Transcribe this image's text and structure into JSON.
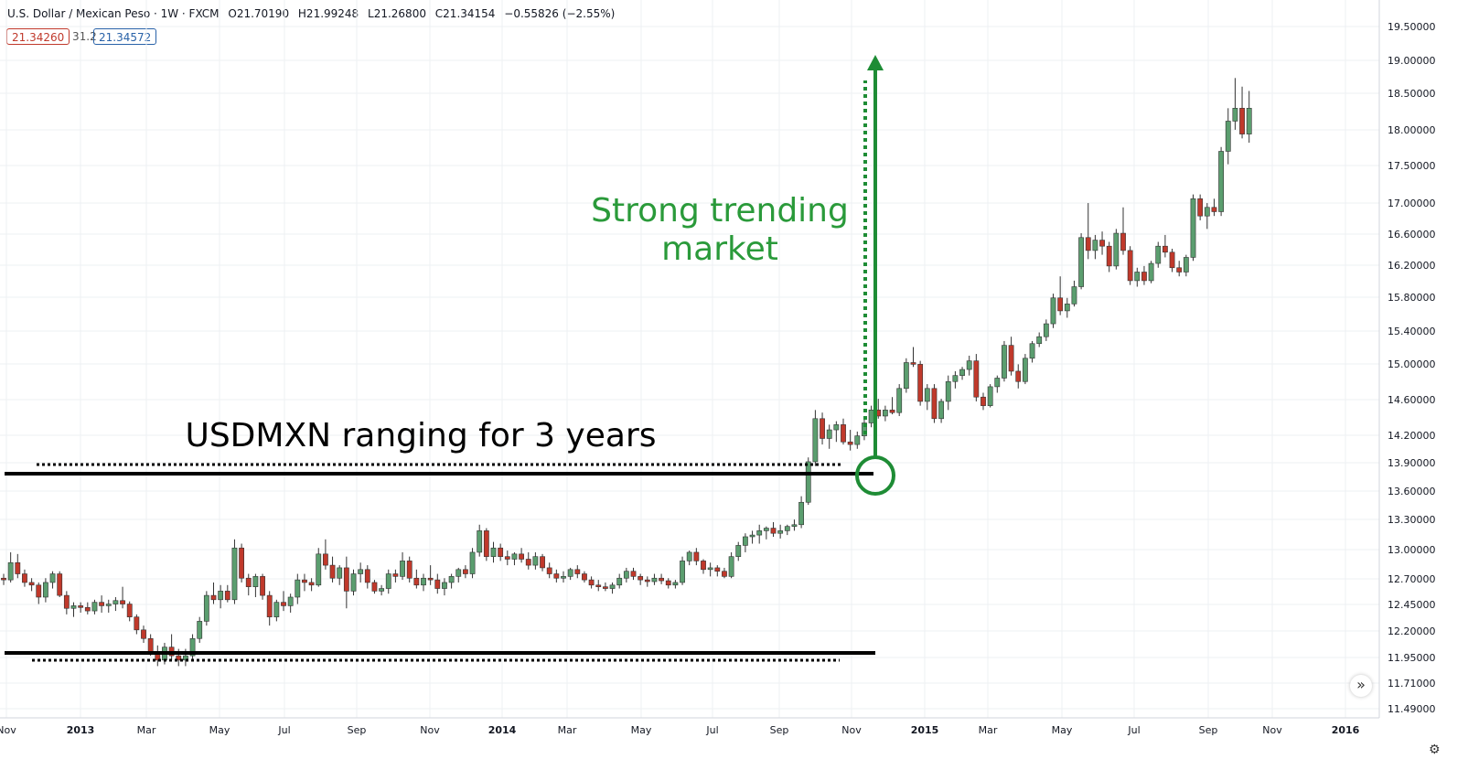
{
  "header": {
    "symbol": "U.S. Dollar / Mexican Peso · 1W · FXCM",
    "open": "O21.70190",
    "high": "H21.99248",
    "low": "L21.26800",
    "close": "C21.34154",
    "change": "−0.55826 (−2.55%)"
  },
  "quote": {
    "bid": "21.34260",
    "spread": "31.2",
    "ask": "21.34572"
  },
  "colors": {
    "up": "#5b9e6f",
    "down": "#c0392b",
    "annotation": "#1e8c35",
    "line": "#000000",
    "grid": "#eef0f3"
  },
  "icons": {
    "scroll": "double-chevron-right-icon",
    "settings": "gear-icon"
  },
  "chart_data": {
    "type": "candlestick",
    "ylim": [
      11.38,
      19.62
    ],
    "y_ticks": [
      "19.50000",
      "19.00000",
      "18.50000",
      "18.00000",
      "17.50000",
      "17.00000",
      "16.60000",
      "16.20000",
      "15.80000",
      "15.40000",
      "15.00000",
      "14.60000",
      "14.20000",
      "13.90000",
      "13.60000",
      "13.30000",
      "13.00000",
      "12.70000",
      "12.45000",
      "12.20000",
      "11.95000",
      "11.71000",
      "11.49000"
    ],
    "x_ticks": [
      {
        "label": "Nov",
        "date": "2012-11"
      },
      {
        "label": "2013",
        "date": "2013-01"
      },
      {
        "label": "Mar",
        "date": "2013-03"
      },
      {
        "label": "May",
        "date": "2013-05"
      },
      {
        "label": "Jul",
        "date": "2013-07"
      },
      {
        "label": "Sep",
        "date": "2013-09"
      },
      {
        "label": "Nov",
        "date": "2013-11"
      },
      {
        "label": "2014",
        "date": "2014-01"
      },
      {
        "label": "Mar",
        "date": "2014-03"
      },
      {
        "label": "May",
        "date": "2014-05"
      },
      {
        "label": "Jul",
        "date": "2014-07"
      },
      {
        "label": "Sep",
        "date": "2014-09"
      },
      {
        "label": "Nov",
        "date": "2014-11"
      },
      {
        "label": "2015",
        "date": "2015-01"
      },
      {
        "label": "Mar",
        "date": "2015-03"
      },
      {
        "label": "May",
        "date": "2015-05"
      },
      {
        "label": "Jul",
        "date": "2015-07"
      },
      {
        "label": "Sep",
        "date": "2015-09"
      },
      {
        "label": "Nov",
        "date": "2015-11"
      },
      {
        "label": "2016",
        "date": "2016-01"
      }
    ],
    "candles": [
      [
        13.0,
        13.05,
        12.92,
        12.98
      ],
      [
        12.98,
        13.3,
        12.95,
        13.18
      ],
      [
        13.18,
        13.28,
        13.0,
        13.05
      ],
      [
        13.05,
        13.1,
        12.9,
        12.95
      ],
      [
        12.95,
        13.0,
        12.85,
        12.92
      ],
      [
        12.92,
        12.95,
        12.7,
        12.78
      ],
      [
        12.78,
        13.0,
        12.72,
        12.95
      ],
      [
        12.95,
        13.08,
        12.88,
        13.05
      ],
      [
        13.05,
        13.08,
        12.78,
        12.8
      ],
      [
        12.8,
        12.85,
        12.58,
        12.65
      ],
      [
        12.65,
        12.72,
        12.55,
        12.68
      ],
      [
        12.68,
        12.72,
        12.6,
        12.66
      ],
      [
        12.66,
        12.72,
        12.58,
        12.62
      ],
      [
        12.62,
        12.75,
        12.58,
        12.72
      ],
      [
        12.72,
        12.8,
        12.6,
        12.68
      ],
      [
        12.68,
        12.75,
        12.6,
        12.7
      ],
      [
        12.7,
        12.78,
        12.62,
        12.74
      ],
      [
        12.74,
        12.9,
        12.65,
        12.7
      ],
      [
        12.7,
        12.73,
        12.5,
        12.55
      ],
      [
        12.55,
        12.58,
        12.35,
        12.4
      ],
      [
        12.4,
        12.45,
        12.25,
        12.3
      ],
      [
        12.3,
        12.35,
        12.1,
        12.15
      ],
      [
        12.15,
        12.22,
        11.98,
        12.05
      ],
      [
        12.05,
        12.25,
        12.0,
        12.2
      ],
      [
        12.2,
        12.35,
        12.05,
        12.1
      ],
      [
        12.1,
        12.18,
        11.98,
        12.05
      ],
      [
        12.05,
        12.18,
        11.98,
        12.1
      ],
      [
        12.1,
        12.35,
        12.05,
        12.3
      ],
      [
        12.3,
        12.55,
        12.25,
        12.5
      ],
      [
        12.5,
        12.85,
        12.45,
        12.8
      ],
      [
        12.8,
        12.95,
        12.7,
        12.75
      ],
      [
        12.75,
        12.92,
        12.65,
        12.85
      ],
      [
        12.85,
        12.92,
        12.72,
        12.75
      ],
      [
        12.75,
        13.45,
        12.7,
        13.35
      ],
      [
        13.35,
        13.4,
        12.95,
        13.0
      ],
      [
        13.0,
        13.05,
        12.8,
        12.9
      ],
      [
        12.9,
        13.05,
        12.78,
        13.02
      ],
      [
        13.02,
        13.05,
        12.75,
        12.8
      ],
      [
        12.8,
        12.85,
        12.45,
        12.55
      ],
      [
        12.55,
        12.75,
        12.5,
        12.72
      ],
      [
        12.72,
        12.85,
        12.62,
        12.68
      ],
      [
        12.68,
        12.82,
        12.6,
        12.78
      ],
      [
        12.78,
        13.05,
        12.7,
        12.98
      ],
      [
        12.98,
        13.05,
        12.85,
        12.95
      ],
      [
        12.95,
        13.0,
        12.85,
        12.92
      ],
      [
        12.92,
        13.35,
        12.9,
        13.28
      ],
      [
        13.28,
        13.45,
        13.1,
        13.15
      ],
      [
        13.15,
        13.25,
        12.95,
        13.0
      ],
      [
        13.0,
        13.15,
        12.92,
        13.12
      ],
      [
        13.12,
        13.25,
        12.65,
        12.85
      ],
      [
        12.85,
        13.1,
        12.8,
        13.05
      ],
      [
        13.05,
        13.18,
        12.95,
        13.1
      ],
      [
        13.1,
        13.15,
        12.88,
        12.95
      ],
      [
        12.95,
        12.98,
        12.82,
        12.85
      ],
      [
        12.85,
        12.92,
        12.8,
        12.88
      ],
      [
        12.88,
        13.1,
        12.82,
        13.05
      ],
      [
        13.05,
        13.1,
        12.95,
        13.02
      ],
      [
        13.02,
        13.3,
        12.98,
        13.2
      ],
      [
        13.2,
        13.25,
        12.95,
        13.0
      ],
      [
        13.0,
        13.1,
        12.88,
        12.92
      ],
      [
        12.92,
        13.05,
        12.85,
        13.0
      ],
      [
        13.0,
        13.15,
        12.92,
        12.98
      ],
      [
        12.98,
        13.05,
        12.82,
        12.88
      ],
      [
        12.88,
        13.0,
        12.8,
        12.95
      ],
      [
        12.95,
        13.05,
        12.88,
        13.02
      ],
      [
        13.02,
        13.12,
        12.95,
        13.1
      ],
      [
        13.1,
        13.15,
        13.0,
        13.05
      ],
      [
        13.05,
        13.35,
        13.0,
        13.3
      ],
      [
        13.3,
        13.62,
        13.25,
        13.55
      ],
      [
        13.55,
        13.58,
        13.2,
        13.25
      ],
      [
        13.25,
        13.42,
        13.18,
        13.35
      ],
      [
        13.35,
        13.4,
        13.2,
        13.25
      ],
      [
        13.25,
        13.32,
        13.15,
        13.22
      ],
      [
        13.22,
        13.3,
        13.15,
        13.28
      ],
      [
        13.28,
        13.35,
        13.18,
        13.22
      ],
      [
        13.22,
        13.3,
        13.1,
        13.15
      ],
      [
        13.15,
        13.3,
        13.1,
        13.25
      ],
      [
        13.25,
        13.28,
        13.08,
        13.12
      ],
      [
        13.12,
        13.18,
        13.0,
        13.05
      ],
      [
        13.05,
        13.1,
        12.95,
        13.0
      ],
      [
        13.0,
        13.08,
        12.95,
        13.02
      ],
      [
        13.02,
        13.12,
        12.98,
        13.1
      ],
      [
        13.1,
        13.15,
        13.0,
        13.05
      ],
      [
        13.05,
        13.08,
        12.95,
        12.98
      ],
      [
        12.98,
        13.02,
        12.88,
        12.92
      ],
      [
        12.92,
        12.98,
        12.85,
        12.9
      ],
      [
        12.9,
        12.95,
        12.85,
        12.88
      ],
      [
        12.88,
        12.95,
        12.82,
        12.92
      ],
      [
        12.92,
        13.05,
        12.88,
        13.0
      ],
      [
        13.0,
        13.12,
        12.95,
        13.08
      ],
      [
        13.08,
        13.12,
        12.98,
        13.02
      ],
      [
        13.02,
        13.05,
        12.92,
        12.98
      ],
      [
        12.98,
        13.02,
        12.9,
        12.96
      ],
      [
        12.96,
        13.05,
        12.92,
        13.0
      ],
      [
        13.0,
        13.05,
        12.93,
        12.97
      ],
      [
        12.97,
        13.0,
        12.88,
        12.92
      ],
      [
        12.92,
        12.98,
        12.88,
        12.95
      ],
      [
        12.95,
        13.25,
        12.92,
        13.2
      ],
      [
        13.2,
        13.32,
        13.15,
        13.3
      ],
      [
        13.3,
        13.35,
        13.15,
        13.2
      ],
      [
        13.2,
        13.22,
        13.05,
        13.1
      ],
      [
        13.1,
        13.18,
        13.02,
        13.12
      ],
      [
        13.12,
        13.15,
        13.02,
        13.08
      ],
      [
        13.08,
        13.12,
        13.0,
        13.02
      ],
      [
        13.02,
        13.3,
        13.0,
        13.25
      ],
      [
        13.25,
        13.42,
        13.2,
        13.38
      ],
      [
        13.38,
        13.52,
        13.3,
        13.48
      ],
      [
        13.48,
        13.55,
        13.4,
        13.5
      ],
      [
        13.5,
        13.62,
        13.4,
        13.55
      ],
      [
        13.55,
        13.6,
        13.45,
        13.58
      ],
      [
        13.58,
        13.65,
        13.48,
        13.52
      ],
      [
        13.52,
        13.62,
        13.46,
        13.55
      ],
      [
        13.55,
        13.62,
        13.5,
        13.6
      ],
      [
        13.6,
        13.68,
        13.55,
        13.62
      ],
      [
        13.62,
        13.95,
        13.58,
        13.88
      ],
      [
        13.88,
        14.4,
        13.85,
        14.35
      ],
      [
        14.35,
        14.95,
        14.3,
        14.85
      ],
      [
        14.85,
        14.92,
        14.55,
        14.62
      ],
      [
        14.62,
        14.78,
        14.5,
        14.72
      ],
      [
        14.72,
        14.82,
        14.58,
        14.78
      ],
      [
        14.78,
        14.85,
        14.55,
        14.58
      ],
      [
        14.58,
        14.72,
        14.48,
        14.55
      ],
      [
        14.55,
        14.7,
        14.5,
        14.65
      ],
      [
        14.65,
        14.88,
        14.6,
        14.8
      ],
      [
        14.8,
        15.0,
        14.75,
        14.95
      ],
      [
        14.95,
        15.08,
        14.85,
        14.88
      ],
      [
        14.88,
        15.0,
        14.82,
        14.95
      ],
      [
        14.95,
        15.1,
        14.9,
        14.92
      ],
      [
        14.92,
        15.25,
        14.88,
        15.2
      ],
      [
        15.2,
        15.55,
        15.15,
        15.5
      ],
      [
        15.5,
        15.68,
        15.45,
        15.48
      ],
      [
        15.48,
        15.52,
        15.0,
        15.05
      ],
      [
        15.05,
        15.25,
        14.95,
        15.2
      ],
      [
        15.2,
        15.25,
        14.8,
        14.85
      ],
      [
        14.85,
        15.08,
        14.8,
        15.05
      ],
      [
        15.05,
        15.35,
        14.95,
        15.28
      ],
      [
        15.28,
        15.4,
        15.2,
        15.35
      ],
      [
        15.35,
        15.45,
        15.3,
        15.42
      ],
      [
        15.42,
        15.58,
        15.35,
        15.52
      ],
      [
        15.52,
        15.6,
        15.05,
        15.1
      ],
      [
        15.1,
        15.15,
        14.95,
        15.0
      ],
      [
        15.0,
        15.25,
        14.98,
        15.22
      ],
      [
        15.22,
        15.35,
        15.15,
        15.32
      ],
      [
        15.32,
        15.75,
        15.28,
        15.7
      ],
      [
        15.7,
        15.8,
        15.35,
        15.4
      ],
      [
        15.4,
        15.48,
        15.2,
        15.28
      ],
      [
        15.28,
        15.6,
        15.25,
        15.55
      ],
      [
        15.55,
        15.75,
        15.5,
        15.72
      ],
      [
        15.72,
        15.85,
        15.68,
        15.8
      ],
      [
        15.8,
        16.0,
        15.75,
        15.95
      ],
      [
        15.95,
        16.3,
        15.9,
        16.25
      ],
      [
        16.25,
        16.5,
        16.05,
        16.1
      ],
      [
        16.1,
        16.25,
        16.02,
        16.18
      ],
      [
        16.18,
        16.45,
        16.15,
        16.38
      ],
      [
        16.38,
        17.0,
        16.35,
        16.95
      ],
      [
        16.95,
        17.35,
        16.7,
        16.8
      ],
      [
        16.8,
        16.98,
        16.7,
        16.92
      ],
      [
        16.92,
        17.02,
        16.75,
        16.85
      ],
      [
        16.85,
        16.9,
        16.55,
        16.62
      ],
      [
        16.62,
        17.05,
        16.58,
        17.0
      ],
      [
        17.0,
        17.3,
        16.75,
        16.8
      ],
      [
        16.8,
        16.85,
        16.4,
        16.45
      ],
      [
        16.45,
        16.6,
        16.38,
        16.55
      ],
      [
        16.55,
        16.62,
        16.4,
        16.45
      ],
      [
        16.45,
        16.68,
        16.42,
        16.65
      ],
      [
        16.65,
        16.9,
        16.6,
        16.85
      ],
      [
        16.85,
        16.98,
        16.72,
        16.78
      ],
      [
        16.78,
        16.82,
        16.55,
        16.6
      ],
      [
        16.6,
        16.68,
        16.5,
        16.55
      ],
      [
        16.55,
        16.75,
        16.5,
        16.72
      ],
      [
        16.72,
        17.45,
        16.68,
        17.4
      ],
      [
        17.4,
        17.45,
        17.15,
        17.2
      ],
      [
        17.2,
        17.35,
        17.05,
        17.3
      ],
      [
        17.3,
        17.4,
        17.2,
        17.25
      ],
      [
        17.25,
        18.0,
        17.2,
        17.95
      ],
      [
        17.95,
        18.45,
        17.8,
        18.3
      ],
      [
        18.3,
        18.8,
        18.2,
        18.45
      ],
      [
        18.45,
        18.7,
        18.1,
        18.15
      ],
      [
        18.15,
        18.65,
        18.05,
        18.45
      ]
    ],
    "annotations": {
      "range_label": "USDMXN ranging for 3 years",
      "trend_label_line1": "Strong trending",
      "trend_label_line2": "market"
    }
  }
}
